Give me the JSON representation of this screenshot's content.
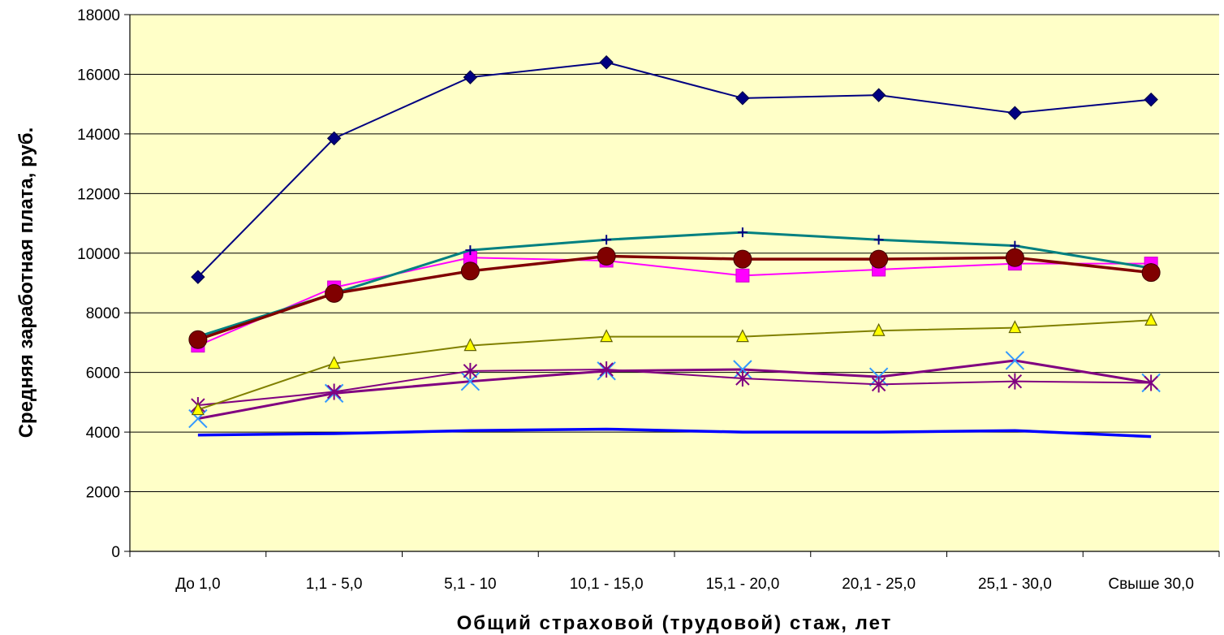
{
  "chart_data": {
    "type": "line",
    "title": "",
    "xlabel": "Общий страховой (трудовой) стаж, лет",
    "ylabel": "Средняя заработная плата, руб.",
    "categories": [
      "До 1,0",
      "1,1 - 5,0",
      "5,1 - 10",
      "10,1 - 15,0",
      "15,1 - 20,0",
      "20,1 - 25,0",
      "25,1 - 30,0",
      "Свыше 30,0"
    ],
    "ylim": [
      0,
      18000
    ],
    "yticks": [
      0,
      2000,
      4000,
      6000,
      8000,
      10000,
      12000,
      14000,
      16000,
      18000
    ],
    "grid": true,
    "background": "#ffffc8",
    "series": [
      {
        "values": [
          9200,
          13850,
          15900,
          16400,
          15200,
          15300,
          14700,
          15150
        ],
        "color": "#000080",
        "marker": "diamond"
      },
      {
        "values": [
          7200,
          8650,
          10100,
          10450,
          10700,
          10450,
          10250,
          9500
        ],
        "color": "#008080",
        "marker": "plus"
      },
      {
        "values": [
          6900,
          8850,
          9850,
          9750,
          9250,
          9450,
          9650,
          9650
        ],
        "color": "#ff00ff",
        "marker": "square"
      },
      {
        "values": [
          7100,
          8650,
          9400,
          9900,
          9800,
          9800,
          9850,
          9350
        ],
        "color": "#800000",
        "marker": "circle"
      },
      {
        "values": [
          4750,
          6300,
          6900,
          7200,
          7200,
          7400,
          7500,
          7750
        ],
        "color": "#808000",
        "marker": "triangle"
      },
      {
        "values": [
          4900,
          5350,
          6050,
          6100,
          5800,
          5600,
          5700,
          5650
        ],
        "color": "#800080",
        "marker": "star"
      },
      {
        "values": [
          4450,
          5300,
          5700,
          6050,
          6100,
          5850,
          6400,
          5650
        ],
        "color": "#800080",
        "marker": "x"
      },
      {
        "values": [
          3900,
          3950,
          4050,
          4100,
          4000,
          4000,
          4050,
          3850
        ],
        "color": "#0000ff",
        "marker": "none"
      }
    ]
  }
}
